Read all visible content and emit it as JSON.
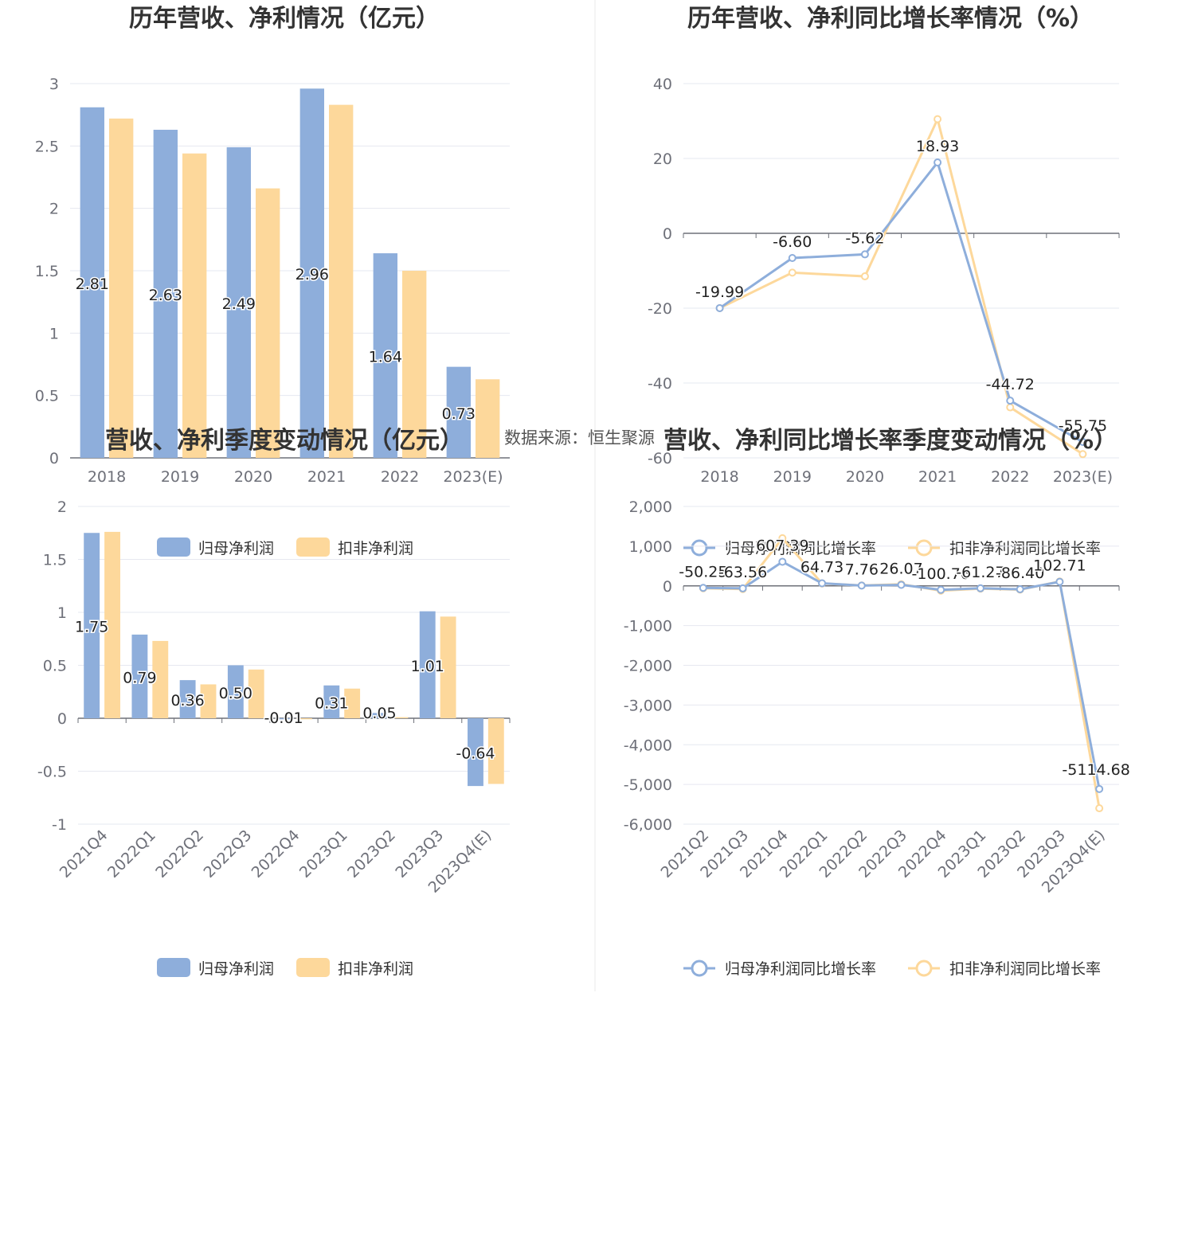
{
  "source_text": "数据来源：恒生聚源",
  "colors": {
    "blue": "#8eaedb",
    "yellow": "#fdd89b",
    "grid": "#e6e8f0",
    "axis": "#6e7079"
  },
  "chart_data": [
    {
      "type": "bar",
      "title": "历年营收、净利情况（亿元）",
      "categories": [
        "2018",
        "2019",
        "2020",
        "2021",
        "2022",
        "2023(E)"
      ],
      "series": [
        {
          "name": "归母净利润",
          "values": [
            2.81,
            2.63,
            2.49,
            2.96,
            1.64,
            0.73
          ]
        },
        {
          "name": "扣非净利润",
          "values": [
            2.72,
            2.44,
            2.16,
            2.83,
            1.5,
            0.63
          ]
        }
      ],
      "data_labels": [
        "2.81",
        "2.63",
        "2.49",
        "2.96",
        "1.64",
        "0.73"
      ],
      "yticks": [
        "0",
        "0.5",
        "1",
        "1.5",
        "2",
        "2.5",
        "3"
      ],
      "ylim": [
        0,
        3
      ],
      "legend": [
        "归母净利润",
        "扣非净利润"
      ]
    },
    {
      "type": "line",
      "title": "历年营收、净利同比增长率情况（%）",
      "categories": [
        "2018",
        "2019",
        "2020",
        "2021",
        "2022",
        "2023(E)"
      ],
      "series": [
        {
          "name": "归母净利润同比增长率",
          "values": [
            -19.99,
            -6.6,
            -5.62,
            18.93,
            -44.72,
            -55.75
          ]
        },
        {
          "name": "扣非净利润同比增长率",
          "values": [
            -20.0,
            -10.5,
            -11.5,
            30.5,
            -46.5,
            -59.0
          ]
        }
      ],
      "data_labels": [
        "-19.99",
        "-6.60",
        "-5.62",
        "18.93",
        "-44.72",
        "-55.75"
      ],
      "yticks": [
        "-60",
        "-40",
        "-20",
        "0",
        "20",
        "40"
      ],
      "ylim": [
        -60,
        40
      ],
      "legend": [
        "归母净利润同比增长率",
        "扣非净利润同比增长率"
      ]
    },
    {
      "type": "bar",
      "title": "营收、净利季度变动情况（亿元）",
      "categories": [
        "2021Q4",
        "2022Q1",
        "2022Q2",
        "2022Q3",
        "2022Q4",
        "2023Q1",
        "2023Q2",
        "2023Q3",
        "2023Q4(E)"
      ],
      "series": [
        {
          "name": "归母净利润",
          "values": [
            1.75,
            0.79,
            0.36,
            0.5,
            -0.01,
            0.31,
            0.05,
            1.01,
            -0.64
          ]
        },
        {
          "name": "扣非净利润",
          "values": [
            1.76,
            0.73,
            0.32,
            0.46,
            -0.01,
            0.28,
            0.01,
            0.96,
            -0.62
          ]
        }
      ],
      "data_labels": [
        "1.75",
        "0.79",
        "0.36",
        "0.50",
        "-0.01",
        "0.31",
        "0.05",
        "1.01",
        "-0.64"
      ],
      "yticks": [
        "-1",
        "-0.5",
        "0",
        "0.5",
        "1",
        "1.5",
        "2"
      ],
      "ylim": [
        -1,
        2
      ],
      "legend": [
        "归母净利润",
        "扣非净利润"
      ]
    },
    {
      "type": "line",
      "title": "营收、净利同比增长率季度变动情况（%）",
      "categories": [
        "2021Q2",
        "2021Q3",
        "2021Q4",
        "2022Q1",
        "2022Q2",
        "2022Q3",
        "2022Q4",
        "2023Q1",
        "2023Q2",
        "2023Q3",
        "2023Q4(E)"
      ],
      "series": [
        {
          "name": "归母净利润同比增长率",
          "values": [
            -50.25,
            -63.56,
            607.39,
            64.73,
            7.76,
            26.07,
            -100.76,
            -61.27,
            -86.4,
            102.71,
            -5114.68
          ]
        },
        {
          "name": "扣非净利润同比增长率",
          "values": [
            -60,
            -80,
            1200,
            60,
            10,
            40,
            -120,
            -70,
            -95,
            110,
            -5600
          ]
        }
      ],
      "data_labels": [
        "-50.25",
        "-63.56",
        "607.39",
        "64.73",
        "7.76",
        "26.07",
        "-100.76",
        "-61.27",
        "-86.40",
        "102.71",
        "-5114.68"
      ],
      "yticks": [
        "-6,000",
        "-5,000",
        "-4,000",
        "-3,000",
        "-2,000",
        "-1,000",
        "0",
        "1,000",
        "2,000"
      ],
      "ylim": [
        -6000,
        2000
      ],
      "legend": [
        "归母净利润同比增长率",
        "扣非净利润同比增长率"
      ]
    }
  ]
}
